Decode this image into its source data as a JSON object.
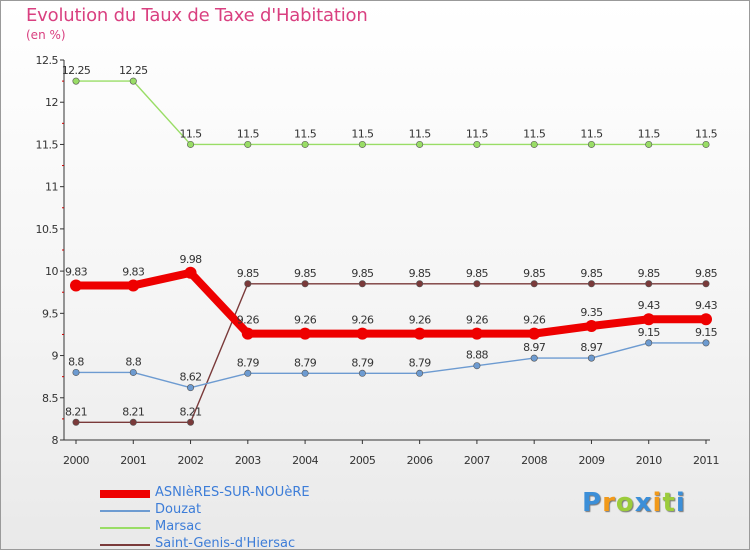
{
  "title": "Evolution du Taux de Taxe d'Habitation",
  "subtitle": "(en %)",
  "chart_data": {
    "type": "line",
    "title": "Evolution du Taux de Taxe d'Habitation",
    "ylabel": "(en %)",
    "xlabel": "",
    "ylim": [
      8,
      12.5
    ],
    "yticks": [
      "8",
      "8.5",
      "9",
      "9.5",
      "10",
      "10.5",
      "11",
      "11.5",
      "12",
      "12.5"
    ],
    "categories": [
      "2000",
      "2001",
      "2002",
      "2003",
      "2004",
      "2005",
      "2006",
      "2007",
      "2008",
      "2009",
      "2010",
      "2011"
    ],
    "series": [
      {
        "name": "ASNIèRES-SUR-NOUèRE",
        "color": "#ee0000",
        "values": [
          9.83,
          9.83,
          9.98,
          9.26,
          9.26,
          9.26,
          9.26,
          9.26,
          9.26,
          9.35,
          9.43,
          9.43
        ],
        "labels": [
          "9.83",
          "9.83",
          "9.98",
          "9.26",
          "9.26",
          "9.26",
          "9.26",
          "9.26",
          "9.26",
          "9.35",
          "9.43",
          "9.43"
        ]
      },
      {
        "name": "Douzat",
        "color": "#6d9bd1",
        "values": [
          8.8,
          8.8,
          8.62,
          8.79,
          8.79,
          8.79,
          8.79,
          8.88,
          8.97,
          8.97,
          9.15,
          9.15
        ],
        "labels": [
          "8.8",
          "8.8",
          "8.62",
          "8.79",
          "8.79",
          "8.79",
          "8.79",
          "8.88",
          "8.97",
          "8.97",
          "9.15",
          "9.15"
        ]
      },
      {
        "name": "Marsac",
        "color": "#99dd66",
        "values": [
          12.25,
          12.25,
          11.5,
          11.5,
          11.5,
          11.5,
          11.5,
          11.5,
          11.5,
          11.5,
          11.5,
          11.5
        ],
        "labels": [
          "12.25",
          "12.25",
          "11.5",
          "11.5",
          "11.5",
          "11.5",
          "11.5",
          "11.5",
          "11.5",
          "11.5",
          "11.5",
          "11.5"
        ]
      },
      {
        "name": "Saint-Genis-d'Hiersac",
        "color": "#7a3a3a",
        "values": [
          8.21,
          8.21,
          8.21,
          9.85,
          9.85,
          9.85,
          9.85,
          9.85,
          9.85,
          9.85,
          9.85,
          9.85
        ],
        "labels": [
          "8.21",
          "8.21",
          "8.21",
          "9.85",
          "9.85",
          "9.85",
          "9.85",
          "9.85",
          "9.85",
          "9.85",
          "9.85",
          "9.85"
        ]
      }
    ]
  },
  "legend": {
    "items": [
      {
        "label": "ASNIèRES-SUR-NOUèRE",
        "color": "#ee0000"
      },
      {
        "label": "Douzat",
        "color": "#6d9bd1"
      },
      {
        "label": "Marsac",
        "color": "#99dd66"
      },
      {
        "label": "Saint-Genis-d'Hiersac",
        "color": "#7a3a3a"
      }
    ]
  },
  "logo": {
    "letters": [
      "P",
      "r",
      "o",
      "x",
      "i",
      "t",
      "i"
    ],
    "colors": [
      "#3c8fd8",
      "#f29a1a",
      "#9ccc3c",
      "#3c8fd8",
      "#f29a1a",
      "#9ccc3c",
      "#3c8fd8"
    ]
  }
}
